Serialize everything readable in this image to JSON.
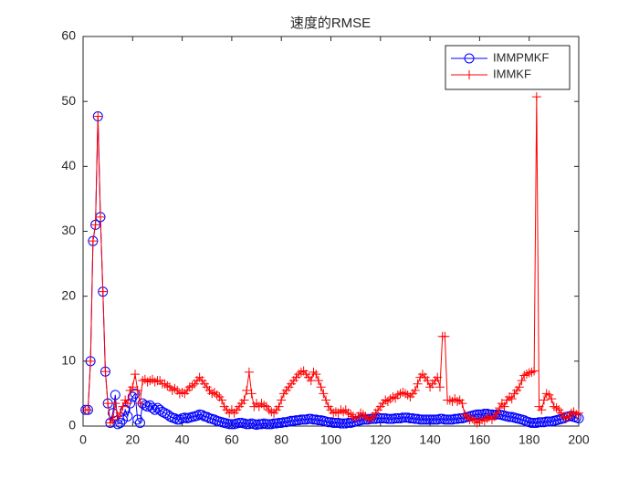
{
  "chart_data": {
    "type": "line",
    "title": "速度的RMSE",
    "x": [
      1,
      2,
      3,
      4,
      5,
      6,
      7,
      8,
      9,
      10,
      11,
      12,
      13,
      14,
      15,
      16,
      17,
      18,
      19,
      20,
      21,
      22,
      23,
      24,
      25,
      26,
      27,
      28,
      29,
      30,
      31,
      32,
      33,
      34,
      35,
      36,
      37,
      38,
      39,
      40,
      41,
      42,
      43,
      44,
      45,
      46,
      47,
      48,
      49,
      50,
      51,
      52,
      53,
      54,
      55,
      56,
      57,
      58,
      59,
      60,
      61,
      62,
      63,
      64,
      65,
      66,
      67,
      68,
      69,
      70,
      71,
      72,
      73,
      74,
      75,
      76,
      77,
      78,
      79,
      80,
      81,
      82,
      83,
      84,
      85,
      86,
      87,
      88,
      89,
      90,
      91,
      92,
      93,
      94,
      95,
      96,
      97,
      98,
      99,
      100,
      101,
      102,
      103,
      104,
      105,
      106,
      107,
      108,
      109,
      110,
      111,
      112,
      113,
      114,
      115,
      116,
      117,
      118,
      119,
      120,
      121,
      122,
      123,
      124,
      125,
      126,
      127,
      128,
      129,
      130,
      131,
      132,
      133,
      134,
      135,
      136,
      137,
      138,
      139,
      140,
      141,
      142,
      143,
      144,
      145,
      146,
      147,
      148,
      149,
      150,
      151,
      152,
      153,
      154,
      155,
      156,
      157,
      158,
      159,
      160,
      161,
      162,
      163,
      164,
      165,
      166,
      167,
      168,
      169,
      170,
      171,
      172,
      173,
      174,
      175,
      176,
      177,
      178,
      179,
      180,
      181,
      182,
      183,
      184,
      185,
      186,
      187,
      188,
      189,
      190,
      191,
      192,
      193,
      194,
      195,
      196,
      197,
      198,
      199,
      200
    ],
    "series": [
      {
        "name": "IMMPMKF",
        "color": "#0000ff",
        "marker": "circle",
        "values": [
          2.5,
          2.5,
          10,
          28.5,
          31,
          47.7,
          32.2,
          20.7,
          8.4,
          3.5,
          0.5,
          2,
          4.8,
          0.3,
          0.5,
          1,
          2.5,
          1.5,
          3.5,
          4.5,
          5,
          1,
          0.5,
          3.5,
          3.2,
          3,
          3.2,
          2.8,
          2.5,
          2.8,
          2.5,
          2.2,
          2,
          1.8,
          1.5,
          1.3,
          1.2,
          1,
          1,
          1.2,
          1.3,
          1.2,
          1.3,
          1.4,
          1.5,
          1.6,
          1.8,
          1.7,
          1.5,
          1.4,
          1.2,
          1.1,
          1,
          0.8,
          0.7,
          0.6,
          0.5,
          0.4,
          0.3,
          0.3,
          0.3,
          0.4,
          0.5,
          0.5,
          0.4,
          0.3,
          0.3,
          0.4,
          0.3,
          0.2,
          0.3,
          0.3,
          0.4,
          0.3,
          0.3,
          0.3,
          0.4,
          0.4,
          0.5,
          0.5,
          0.6,
          0.6,
          0.7,
          0.8,
          0.8,
          0.9,
          0.9,
          1,
          1,
          1,
          1.1,
          1.1,
          1,
          1,
          0.9,
          0.9,
          0.8,
          0.7,
          0.6,
          0.6,
          0.5,
          0.5,
          0.5,
          0.4,
          0.4,
          0.4,
          0.5,
          0.5,
          0.6,
          0.7,
          0.8,
          0.9,
          1,
          1,
          1,
          1.1,
          1.1,
          1.1,
          1.2,
          1.2,
          1.2,
          1.2,
          1.1,
          1.1,
          1.1,
          1.2,
          1.2,
          1.2,
          1.3,
          1.3,
          1.3,
          1.2,
          1.2,
          1.1,
          1.1,
          1,
          1,
          1,
          1,
          1,
          1,
          1,
          1,
          1.1,
          1.1,
          1,
          1,
          1,
          1,
          1.1,
          1.1,
          1.2,
          1.2,
          1.3,
          1.4,
          1.5,
          1.6,
          1.7,
          1.8,
          1.8,
          1.8,
          1.9,
          1.9,
          1.8,
          1.8,
          1.7,
          1.8,
          1.8,
          1.7,
          1.6,
          1.5,
          1.4,
          1.4,
          1.3,
          1.2,
          1.1,
          1,
          0.9,
          0.7,
          0.6,
          0.5,
          0.5,
          0.5,
          0.6,
          0.6,
          0.6,
          0.7,
          0.7,
          0.7,
          0.8,
          0.9,
          1,
          1.1,
          1.2,
          1.4,
          1.5,
          1.6,
          1.4,
          1.3,
          1.2
        ]
      },
      {
        "name": "IMMKF",
        "color": "#ff0000",
        "marker": "plus",
        "values": [
          2.5,
          2.5,
          10,
          28.5,
          31,
          47.7,
          32.2,
          20.7,
          8.4,
          3.5,
          0.5,
          1,
          3.5,
          1.5,
          2,
          3,
          4,
          3.5,
          5.5,
          6,
          8,
          5.5,
          3.5,
          7,
          7.2,
          6.8,
          7,
          7.2,
          6.8,
          7,
          7,
          6.5,
          6.5,
          6.2,
          6,
          5.5,
          5.8,
          5.5,
          5,
          5.2,
          5,
          5.5,
          6,
          6.2,
          6.5,
          7,
          7.5,
          7,
          6.5,
          6,
          5.5,
          5,
          5.2,
          4.8,
          4.5,
          4,
          3,
          2.5,
          2,
          2.5,
          2,
          2.5,
          3,
          3.5,
          4,
          5.5,
          8.3,
          5,
          3,
          3.5,
          3,
          3.5,
          3.2,
          3,
          2.5,
          2.2,
          2,
          2.5,
          3,
          4,
          5,
          5.5,
          6,
          6.5,
          7,
          7.5,
          8,
          8.3,
          8.5,
          8,
          7.5,
          7,
          8.3,
          8,
          7,
          6,
          5,
          4,
          3,
          2.5,
          2,
          2.2,
          2,
          2.5,
          2.2,
          2.5,
          2,
          1.8,
          1.5,
          1.2,
          1.5,
          2,
          1.8,
          1.5,
          1.2,
          1,
          1.5,
          2,
          2.5,
          3,
          3.5,
          4,
          3.8,
          4.2,
          4.5,
          4.3,
          4.8,
          5,
          5.2,
          5,
          4.8,
          4.5,
          5,
          5.5,
          6.5,
          7.5,
          8,
          7.5,
          7,
          6,
          6.5,
          7,
          7.5,
          6,
          13.8,
          13.8,
          4,
          4,
          3.8,
          4.2,
          3.8,
          4,
          3.5,
          1.8,
          1.5,
          1,
          1.2,
          0.8,
          0.5,
          0.8,
          1,
          0.8,
          1.2,
          1.5,
          1,
          1.5,
          2,
          2.8,
          3.5,
          3,
          4,
          4.5,
          4.2,
          5,
          5.5,
          6,
          7,
          7.8,
          8,
          8.2,
          8.3,
          8.5,
          50.7,
          3,
          2.5,
          4,
          5,
          4.8,
          4.2,
          3,
          2.8,
          2.5,
          2,
          1.5,
          1.2,
          1.5,
          2,
          2.2,
          1.8,
          2
        ]
      }
    ],
    "xlim": [
      0,
      200
    ],
    "xticks": [
      0,
      20,
      40,
      60,
      80,
      100,
      120,
      140,
      160,
      180,
      200
    ],
    "ylim": [
      0,
      60
    ],
    "yticks": [
      0,
      10,
      20,
      30,
      40,
      50,
      60
    ],
    "legend": "top-right"
  }
}
